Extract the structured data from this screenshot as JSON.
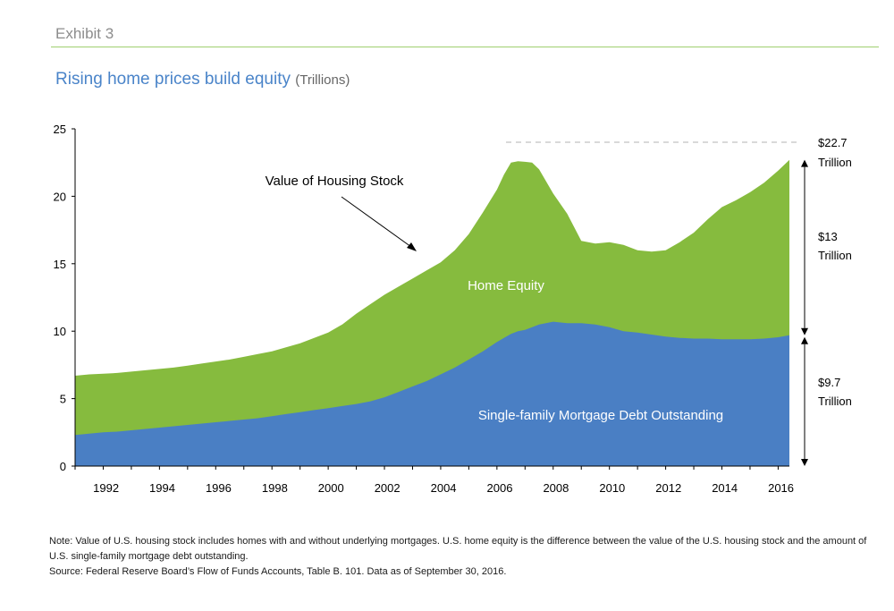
{
  "header": {
    "exhibit": "Exhibit 3",
    "title": "Rising home prices build equity",
    "title_unit": "(Trillions)"
  },
  "footer": {
    "note": "Note: Value of U.S. housing stock includes homes with and without underlying mortgages. U.S. home equity is the difference between the value of the U.S. housing stock and the amount of U.S. single-family mortgage debt outstanding.",
    "source": "Source: Federal Reserve Board’s Flow of Funds Accounts, Table B. 101. Data as of September 30, 2016."
  },
  "chart_data": {
    "type": "area",
    "ylim": [
      0,
      25
    ],
    "yticks": [
      0,
      5,
      10,
      15,
      20,
      25
    ],
    "xlim": [
      1991,
      2016.4
    ],
    "xticks": [
      "1992",
      "1994",
      "1996",
      "1998",
      "2000",
      "2002",
      "2004",
      "2006",
      "2008",
      "2010",
      "2012",
      "2014",
      "2016"
    ],
    "xtick_values": [
      1992,
      1994,
      1996,
      1998,
      2000,
      2002,
      2004,
      2006,
      2008,
      2010,
      2012,
      2014,
      2016
    ],
    "colors": {
      "mortgage": "#4a7fc4",
      "equity": "#86bb3e",
      "axis": "#000000",
      "dashed": "#b3b3b3"
    },
    "x": [
      1991,
      1991.5,
      1992,
      1992.5,
      1993,
      1993.5,
      1994,
      1994.5,
      1995,
      1995.5,
      1996,
      1996.5,
      1997,
      1997.5,
      1998,
      1998.5,
      1999,
      1999.5,
      2000,
      2000.5,
      2001,
      2001.5,
      2002,
      2002.5,
      2003,
      2003.5,
      2004,
      2004.5,
      2005,
      2005.5,
      2006,
      2006.25,
      2006.5,
      2006.75,
      2007,
      2007.25,
      2007.5,
      2008,
      2008.5,
      2009,
      2009.5,
      2010,
      2010.5,
      2011,
      2011.5,
      2012,
      2012.5,
      2013,
      2013.5,
      2014,
      2014.5,
      2015,
      2015.5,
      2016,
      2016.4
    ],
    "series": [
      {
        "key": "mortgage",
        "name": "Single-family Mortgage Debt Outstanding",
        "values": [
          2.3,
          2.4,
          2.5,
          2.55,
          2.65,
          2.75,
          2.85,
          2.95,
          3.05,
          3.15,
          3.25,
          3.35,
          3.45,
          3.55,
          3.7,
          3.85,
          4.0,
          4.15,
          4.3,
          4.45,
          4.6,
          4.8,
          5.1,
          5.5,
          5.9,
          6.3,
          6.8,
          7.3,
          7.9,
          8.5,
          9.2,
          9.5,
          9.8,
          10.0,
          10.1,
          10.3,
          10.5,
          10.7,
          10.6,
          10.6,
          10.5,
          10.3,
          10.0,
          9.9,
          9.75,
          9.6,
          9.5,
          9.45,
          9.45,
          9.4,
          9.4,
          9.4,
          9.45,
          9.55,
          9.7
        ]
      },
      {
        "key": "housing_stock",
        "name": "Value of Housing Stock",
        "values": [
          6.7,
          6.8,
          6.85,
          6.9,
          7.0,
          7.1,
          7.2,
          7.3,
          7.45,
          7.6,
          7.75,
          7.9,
          8.1,
          8.3,
          8.5,
          8.8,
          9.1,
          9.5,
          9.9,
          10.5,
          11.3,
          12.0,
          12.7,
          13.3,
          13.9,
          14.5,
          15.1,
          16.0,
          17.2,
          18.8,
          20.5,
          21.6,
          22.5,
          22.6,
          22.55,
          22.5,
          22.0,
          20.2,
          18.7,
          16.7,
          16.5,
          16.6,
          16.4,
          16.0,
          15.9,
          16.0,
          16.6,
          17.3,
          18.3,
          19.2,
          19.7,
          20.3,
          21.0,
          21.9,
          22.7
        ]
      }
    ],
    "labels": {
      "housing_stock": "Value of Housing Stock",
      "home_equity": "Home Equity",
      "mortgage": "Single-family Mortgage Debt Outstanding"
    },
    "annotations": {
      "peak_value": "$22.7",
      "peak_unit": "Trillion",
      "equity_value": "$13",
      "equity_unit": "Trillion",
      "debt_value": "$9.7",
      "debt_unit": "Trillion"
    }
  }
}
